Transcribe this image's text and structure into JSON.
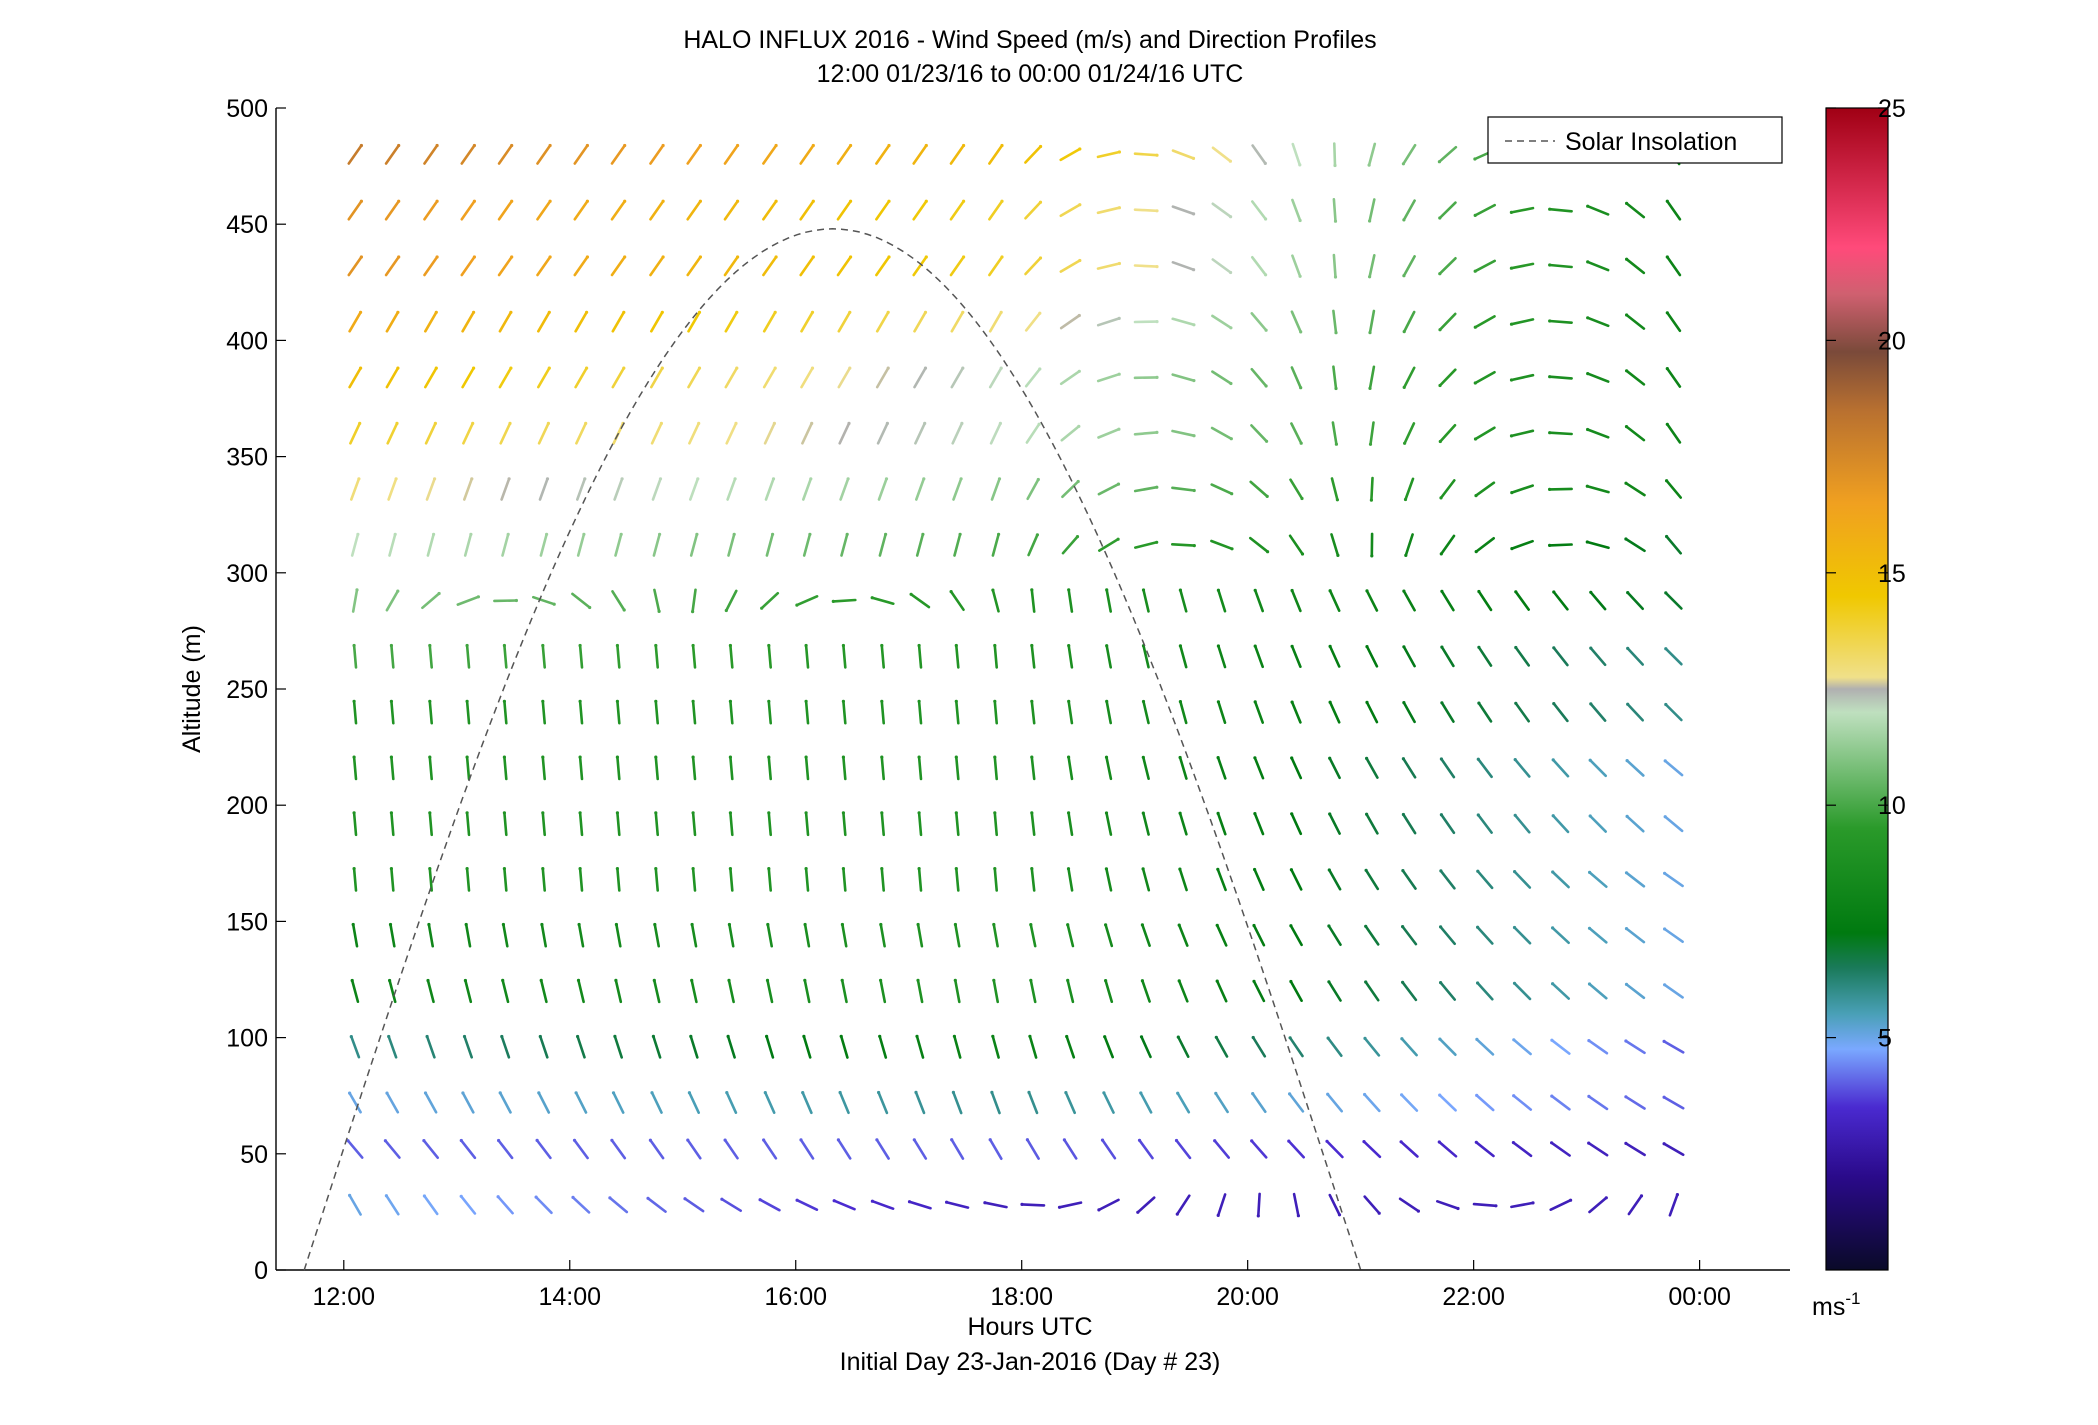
{
  "chart_data": {
    "type": "wind-barb",
    "title_line1": "HALO INFLUX 2016 - Wind Speed (m/s) and Direction Profiles",
    "title_line2": "12:00 01/23/16 to 00:00 01/24/16  UTC",
    "xlabel": "Hours UTC",
    "xlabel2": "Initial Day 23-Jan-2016 (Day # 23)",
    "ylabel": "Altitude (m)",
    "xlim_hours": [
      11.4,
      24.8
    ],
    "ylim": [
      0,
      500
    ],
    "x_ticks": [
      {
        "value": 12,
        "label": "12:00"
      },
      {
        "value": 14,
        "label": "14:00"
      },
      {
        "value": 16,
        "label": "16:00"
      },
      {
        "value": 18,
        "label": "18:00"
      },
      {
        "value": 20,
        "label": "20:00"
      },
      {
        "value": 22,
        "label": "22:00"
      },
      {
        "value": 24,
        "label": "00:00"
      }
    ],
    "y_ticks": [
      0,
      50,
      100,
      150,
      200,
      250,
      300,
      350,
      400,
      450,
      500
    ],
    "legend": {
      "label": "Solar Insolation",
      "placement": "top-right"
    },
    "colorbar": {
      "min": 0,
      "max": 25,
      "ticks": [
        5,
        10,
        15,
        20,
        25
      ],
      "unit": "ms-1",
      "unit_base": "ms",
      "unit_exp": "-1"
    },
    "solar_insolation": {
      "start_hour": 11.65,
      "peak_hour": 16.33,
      "end_hour": 21.0,
      "peak_altitude": 448
    },
    "wind_times_hours": [
      12.1,
      12.43,
      12.77,
      13.1,
      13.43,
      13.77,
      14.1,
      14.43,
      14.77,
      15.1,
      15.43,
      15.77,
      16.1,
      16.43,
      16.77,
      17.1,
      17.43,
      17.77,
      18.1,
      18.43,
      18.77,
      19.1,
      19.43,
      19.77,
      20.1,
      20.43,
      20.77,
      21.1,
      21.43,
      21.77,
      22.1,
      22.43,
      22.77,
      23.1,
      23.43,
      23.77
    ],
    "wind_altitudes": [
      28,
      52,
      72,
      96,
      120,
      144,
      168,
      192,
      216,
      240,
      264,
      288,
      312,
      336,
      360,
      384,
      408,
      432,
      456,
      480
    ],
    "wind_grid_note": "speed (m/s) and direction (deg, blowing-from) per altitude row",
    "wind_rows": [
      {
        "alt": 28,
        "speed_left": 5,
        "dir_left": 330,
        "speed_mid": 3,
        "dir_mid": 280,
        "speed_right": 3,
        "dir_right": 20
      },
      {
        "alt": 52,
        "speed_left": 4,
        "dir_left": 320,
        "speed_mid": 4,
        "dir_mid": 330,
        "speed_right": 3,
        "dir_right": 300
      },
      {
        "alt": 72,
        "speed_left": 5,
        "dir_left": 330,
        "speed_mid": 6,
        "dir_mid": 340,
        "speed_right": 4,
        "dir_right": 300
      },
      {
        "alt": 96,
        "speed_left": 6,
        "dir_left": 340,
        "speed_mid": 8,
        "dir_mid": 345,
        "speed_right": 4,
        "dir_right": 300
      },
      {
        "alt": 120,
        "speed_left": 8,
        "dir_left": 345,
        "speed_mid": 9,
        "dir_mid": 350,
        "speed_right": 5,
        "dir_right": 305
      },
      {
        "alt": 144,
        "speed_left": 8,
        "dir_left": 350,
        "speed_mid": 9,
        "dir_mid": 350,
        "speed_right": 5,
        "dir_right": 305
      },
      {
        "alt": 168,
        "speed_left": 9,
        "dir_left": 355,
        "speed_mid": 9,
        "dir_mid": 355,
        "speed_right": 5,
        "dir_right": 305
      },
      {
        "alt": 192,
        "speed_left": 9,
        "dir_left": 355,
        "speed_mid": 9,
        "dir_mid": 355,
        "speed_right": 5,
        "dir_right": 310
      },
      {
        "alt": 216,
        "speed_left": 9,
        "dir_left": 355,
        "speed_mid": 9,
        "dir_mid": 355,
        "speed_right": 5,
        "dir_right": 310
      },
      {
        "alt": 240,
        "speed_left": 9,
        "dir_left": 355,
        "speed_mid": 9,
        "dir_mid": 355,
        "speed_right": 6,
        "dir_right": 315
      },
      {
        "alt": 264,
        "speed_left": 10,
        "dir_left": 355,
        "speed_mid": 9,
        "dir_mid": 355,
        "speed_right": 6,
        "dir_right": 315
      },
      {
        "alt": 288,
        "speed_left": 11,
        "dir_left": 10,
        "speed_mid": 9,
        "dir_mid": 355,
        "speed_right": 7,
        "dir_right": 315
      },
      {
        "alt": 312,
        "speed_left": 12,
        "dir_left": 15,
        "speed_mid": 10,
        "dir_mid": 15,
        "speed_right": 7,
        "dir_right": 320
      },
      {
        "alt": 336,
        "speed_left": 13,
        "dir_left": 20,
        "speed_mid": 11,
        "dir_mid": 20,
        "speed_right": 8,
        "dir_right": 320
      },
      {
        "alt": 360,
        "speed_left": 14,
        "dir_left": 25,
        "speed_mid": 12,
        "dir_mid": 25,
        "speed_right": 8,
        "dir_right": 325
      },
      {
        "alt": 384,
        "speed_left": 15,
        "dir_left": 30,
        "speed_mid": 12,
        "dir_mid": 30,
        "speed_right": 8,
        "dir_right": 325
      },
      {
        "alt": 408,
        "speed_left": 16,
        "dir_left": 30,
        "speed_mid": 13,
        "dir_mid": 30,
        "speed_right": 8,
        "dir_right": 325
      },
      {
        "alt": 432,
        "speed_left": 17,
        "dir_left": 35,
        "speed_mid": 14,
        "dir_mid": 35,
        "speed_right": 8,
        "dir_right": 325
      },
      {
        "alt": 456,
        "speed_left": 17,
        "dir_left": 35,
        "speed_mid": 14,
        "dir_mid": 35,
        "speed_right": 8,
        "dir_right": 325
      },
      {
        "alt": 480,
        "speed_left": 18,
        "dir_left": 35,
        "speed_mid": 15,
        "dir_mid": 35,
        "speed_right": 8,
        "dir_right": 330
      }
    ]
  }
}
